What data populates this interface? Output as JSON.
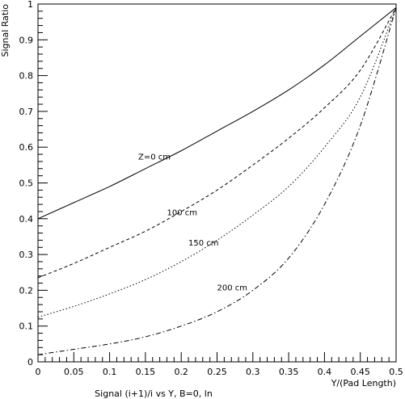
{
  "chart_data": {
    "type": "line",
    "title": "",
    "caption": "Signal (i+1)/i vs Y, B=0, ln",
    "xlabel": "Y/(Pad Length)",
    "ylabel": "Signal Ratio",
    "xlim": [
      0,
      0.5
    ],
    "ylim": [
      0,
      1
    ],
    "grid": false,
    "legend": "none",
    "x_ticks": [
      0,
      0.05,
      0.1,
      0.15,
      0.2,
      0.25,
      0.3,
      0.35,
      0.4,
      0.45,
      0.5
    ],
    "x_tick_labels": [
      "0",
      "0.05",
      "0.1",
      "0.15",
      "0.2",
      "0.25",
      "0.3",
      "0.35",
      "0.4",
      "0.45",
      "0.5"
    ],
    "y_ticks": [
      0,
      0.1,
      0.2,
      0.3,
      0.4,
      0.5,
      0.6,
      0.7,
      0.8,
      0.9,
      1
    ],
    "y_tick_labels": [
      "0",
      "0.1",
      "0.2",
      "0.3",
      "0.4",
      "0.5",
      "0.6",
      "0.7",
      "0.8",
      "0.9",
      "1"
    ],
    "x": [
      0,
      0.05,
      0.1,
      0.15,
      0.2,
      0.25,
      0.3,
      0.35,
      0.4,
      0.45,
      0.5
    ],
    "series": [
      {
        "label_text": "Z=0 cm",
        "label_at": [
          0.14,
          0.565
        ],
        "dash": "solid",
        "values": [
          0.4,
          0.445,
          0.49,
          0.54,
          0.59,
          0.645,
          0.7,
          0.76,
          0.83,
          0.91,
          0.99
        ]
      },
      {
        "label_text": "100 cm",
        "label_at": [
          0.18,
          0.41
        ],
        "dash": "dashed",
        "values": [
          0.235,
          0.275,
          0.32,
          0.365,
          0.42,
          0.48,
          0.55,
          0.625,
          0.71,
          0.815,
          0.99
        ]
      },
      {
        "label_text": "150 cm",
        "label_at": [
          0.21,
          0.325
        ],
        "dash": "dotted",
        "values": [
          0.125,
          0.155,
          0.19,
          0.23,
          0.28,
          0.34,
          0.41,
          0.49,
          0.6,
          0.74,
          0.99
        ]
      },
      {
        "label_text": "200 cm",
        "label_at": [
          0.25,
          0.2
        ],
        "dash": "dashdot",
        "values": [
          0.02,
          0.035,
          0.05,
          0.07,
          0.1,
          0.14,
          0.2,
          0.29,
          0.44,
          0.66,
          0.99
        ]
      }
    ]
  }
}
